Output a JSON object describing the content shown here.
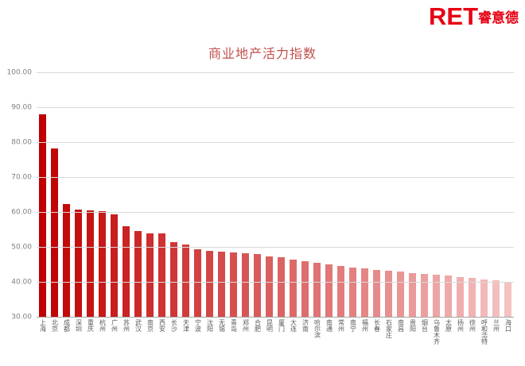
{
  "logo": {
    "ret": "RET",
    "chinese": "睿意德",
    "color": "#e60012"
  },
  "chart_data": {
    "type": "bar",
    "title": "商业地产活力指数",
    "title_color": "#c0504d",
    "xlabel": "",
    "ylabel": "",
    "ylim": [
      30,
      100
    ],
    "yticks": [
      30,
      40,
      50,
      60,
      70,
      80,
      90,
      100
    ],
    "grid": true,
    "legend": "none",
    "gridline_color": "#d9d9d9",
    "axis_line_color": "#a6a6a6",
    "axis_text_color": "#808080",
    "bar_color_start": "#c00000",
    "bar_color_end": "#f5c2c2",
    "categories": [
      "上海",
      "北京",
      "成都",
      "深圳",
      "重庆",
      "杭州",
      "广州",
      "苏州",
      "武汉",
      "南京",
      "西安",
      "长沙",
      "天津",
      "宁波",
      "沈阳",
      "无锡",
      "青岛",
      "郑州",
      "合肥",
      "昆明",
      "厦门",
      "大连",
      "济南",
      "哈尔滨",
      "南通",
      "常州",
      "南宁",
      "福州",
      "长春",
      "石家庄",
      "南昌",
      "贵阳",
      "烟台",
      "乌鲁木齐",
      "太原",
      "扬州",
      "徐州",
      "呼和浩特",
      "兰州",
      "海口"
    ],
    "values": [
      88.2,
      78.4,
      62.6,
      61.0,
      60.7,
      60.4,
      59.5,
      56.2,
      54.8,
      54.2,
      54.0,
      51.6,
      50.8,
      49.6,
      49.2,
      48.9,
      48.7,
      48.3,
      48.1,
      47.6,
      47.2,
      46.6,
      46.1,
      45.6,
      45.2,
      44.8,
      44.4,
      44.1,
      43.7,
      43.3,
      43.1,
      42.8,
      42.6,
      42.2,
      42.0,
      41.6,
      41.3,
      41.0,
      40.6,
      40.1
    ]
  }
}
